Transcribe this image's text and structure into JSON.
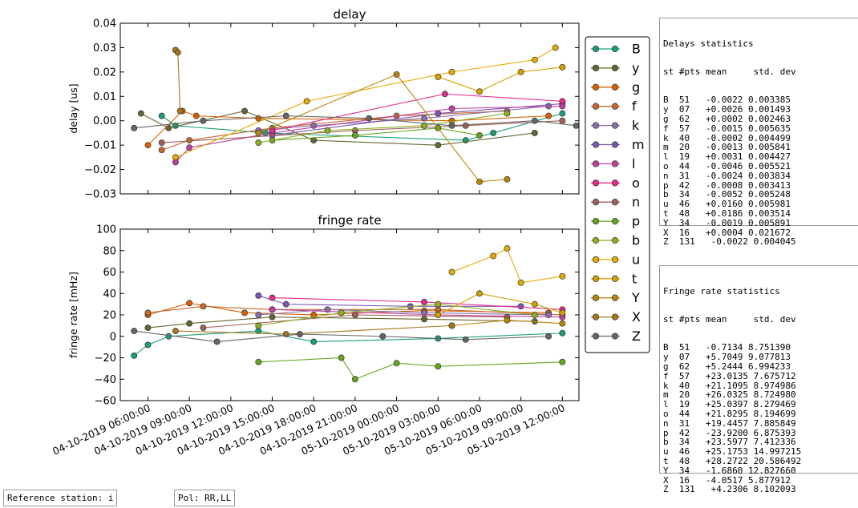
{
  "chart_data": [
    {
      "type": "line",
      "title": "delay",
      "ylabel": "delay [us]",
      "xlabel": "",
      "ylim": [
        -0.03,
        0.04
      ],
      "yticks": [
        "0.04",
        "0.03",
        "0.02",
        "0.01",
        "0.00",
        "−0.01",
        "−0.02",
        "−0.03"
      ],
      "x_categories": [
        "04-10-2019 06:00:00",
        "04-10-2019 09:00:00",
        "04-10-2019 12:00:00",
        "04-10-2019 15:00:00",
        "04-10-2019 18:00:00",
        "04-10-2019 21:00:00",
        "05-10-2019 00:00:00",
        "05-10-2019 03:00:00",
        "05-10-2019 06:00:00",
        "05-10-2019 09:00:00",
        "05-10-2019 12:00:00"
      ],
      "series": [
        {
          "name": "B",
          "color": "#1b9e77",
          "points": [
            [
              "04-10-2019 07:00",
              0.002
            ],
            [
              "04-10-2019 08:00",
              -0.002
            ],
            [
              "04-10-2019 14:30",
              -0.005
            ],
            [
              "05-10-2019 05:00",
              -0.008
            ],
            [
              "05-10-2019 07:00",
              -0.005
            ],
            [
              "05-10-2019 12:00",
              0.003
            ]
          ]
        },
        {
          "name": "y",
          "color": "#666633",
          "points": [
            [
              "04-10-2019 05:30",
              0.003
            ],
            [
              "04-10-2019 07:30",
              -0.003
            ],
            [
              "04-10-2019 13:00",
              0.004
            ],
            [
              "04-10-2019 18:00",
              -0.008
            ],
            [
              "05-10-2019 03:00",
              -0.01
            ],
            [
              "05-10-2019 10:00",
              -0.005
            ]
          ]
        },
        {
          "name": "g",
          "color": "#d95f02",
          "points": [
            [
              "04-10-2019 06:00",
              -0.01
            ],
            [
              "04-10-2019 08:30",
              0.004
            ],
            [
              "04-10-2019 09:30",
              0.002
            ],
            [
              "04-10-2019 14:00",
              0.001
            ],
            [
              "05-10-2019 04:00",
              0.0
            ],
            [
              "05-10-2019 11:00",
              0.002
            ]
          ]
        },
        {
          "name": "f",
          "color": "#c46a2b",
          "points": [
            [
              "04-10-2019 07:00",
              -0.012
            ],
            [
              "04-10-2019 09:00",
              -0.008
            ],
            [
              "04-10-2019 15:00",
              -0.003
            ],
            [
              "05-10-2019 00:00",
              0.002
            ],
            [
              "05-10-2019 08:00",
              0.004
            ]
          ]
        },
        {
          "name": "k",
          "color": "#8870a8",
          "points": [
            [
              "04-10-2019 14:00",
              -0.004
            ],
            [
              "04-10-2019 18:00",
              -0.002
            ],
            [
              "05-10-2019 02:00",
              0.001
            ],
            [
              "05-10-2019 11:00",
              0.006
            ]
          ]
        },
        {
          "name": "m",
          "color": "#7a55b0",
          "points": [
            [
              "04-10-2019 15:00",
              -0.006
            ],
            [
              "05-10-2019 03:00",
              0.003
            ],
            [
              "05-10-2019 12:00",
              0.007
            ]
          ]
        },
        {
          "name": "l",
          "color": "#c040a0",
          "points": [
            [
              "04-10-2019 08:00",
              -0.017
            ],
            [
              "04-10-2019 09:00",
              -0.011
            ],
            [
              "04-10-2019 15:00",
              -0.005
            ],
            [
              "05-10-2019 04:00",
              0.005
            ],
            [
              "05-10-2019 12:00",
              0.006
            ]
          ]
        },
        {
          "name": "o",
          "color": "#e7298a",
          "points": [
            [
              "04-10-2019 15:00",
              -0.004
            ],
            [
              "05-10-2019 03:30",
              0.011
            ],
            [
              "05-10-2019 12:00",
              0.008
            ]
          ]
        },
        {
          "name": "n",
          "color": "#a0605a",
          "points": [
            [
              "04-10-2019 07:00",
              -0.009
            ],
            [
              "04-10-2019 21:00",
              -0.004
            ],
            [
              "05-10-2019 05:00",
              -0.002
            ],
            [
              "05-10-2019 12:00",
              0.0
            ]
          ]
        },
        {
          "name": "p",
          "color": "#66a61e",
          "points": [
            [
              "04-10-2019 15:00",
              -0.008
            ],
            [
              "04-10-2019 21:00",
              -0.006
            ],
            [
              "05-10-2019 03:00",
              -0.003
            ],
            [
              "05-10-2019 06:00",
              -0.006
            ]
          ]
        },
        {
          "name": "b",
          "color": "#8db020",
          "points": [
            [
              "04-10-2019 14:00",
              -0.009
            ],
            [
              "04-10-2019 19:00",
              -0.004
            ],
            [
              "05-10-2019 02:00",
              -0.002
            ],
            [
              "05-10-2019 08:00",
              0.003
            ]
          ]
        },
        {
          "name": "u",
          "color": "#e6ab02",
          "points": [
            [
              "04-10-2019 08:00",
              -0.015
            ],
            [
              "04-10-2019 17:30",
              0.008
            ],
            [
              "05-10-2019 04:00",
              0.02
            ],
            [
              "05-10-2019 10:00",
              0.025
            ],
            [
              "05-10-2019 11:30",
              0.03
            ]
          ]
        },
        {
          "name": "t",
          "color": "#d4a200",
          "points": [
            [
              "05-10-2019 03:00",
              0.018
            ],
            [
              "05-10-2019 06:00",
              0.012
            ],
            [
              "05-10-2019 09:00",
              0.02
            ],
            [
              "05-10-2019 12:00",
              0.022
            ]
          ]
        },
        {
          "name": "Y",
          "color": "#b8860b",
          "points": [
            [
              "04-10-2019 14:00",
              -0.005
            ],
            [
              "05-10-2019 00:00",
              0.019
            ],
            [
              "05-10-2019 06:00",
              -0.025
            ],
            [
              "05-10-2019 08:00",
              -0.024
            ]
          ]
        },
        {
          "name": "X",
          "color": "#a6761d",
          "points": [
            [
              "04-10-2019 08:00",
              0.029
            ],
            [
              "04-10-2019 08:10",
              0.028
            ],
            [
              "04-10-2019 08:20",
              0.004
            ]
          ]
        },
        {
          "name": "Z",
          "color": "#666666",
          "points": [
            [
              "04-10-2019 05:00",
              -0.003
            ],
            [
              "04-10-2019 10:00",
              0.0
            ],
            [
              "04-10-2019 16:00",
              0.002
            ],
            [
              "04-10-2019 22:00",
              0.001
            ],
            [
              "05-10-2019 04:00",
              -0.002
            ],
            [
              "05-10-2019 10:00",
              0.0
            ],
            [
              "05-10-2019 13:00",
              -0.002
            ]
          ]
        }
      ]
    },
    {
      "type": "line",
      "title": "fringe rate",
      "ylabel": "fringe rate [mHz]",
      "xlabel": "",
      "ylim": [
        -60,
        100
      ],
      "yticks": [
        "100",
        "80",
        "60",
        "40",
        "20",
        "0",
        "−20",
        "−40",
        "−60"
      ],
      "x_categories": [
        "04-10-2019 06:00:00",
        "04-10-2019 09:00:00",
        "04-10-2019 12:00:00",
        "04-10-2019 15:00:00",
        "04-10-2019 18:00:00",
        "04-10-2019 21:00:00",
        "05-10-2019 00:00:00",
        "05-10-2019 03:00:00",
        "05-10-2019 06:00:00",
        "05-10-2019 09:00:00",
        "05-10-2019 12:00:00"
      ],
      "series": [
        {
          "name": "B",
          "color": "#1b9e77",
          "points": [
            [
              "04-10-2019 05:00",
              -18
            ],
            [
              "04-10-2019 06:00",
              -8
            ],
            [
              "04-10-2019 07:30",
              0
            ],
            [
              "04-10-2019 14:00",
              5
            ],
            [
              "04-10-2019 18:00",
              -5
            ],
            [
              "05-10-2019 03:00",
              -2
            ],
            [
              "05-10-2019 12:00",
              3
            ]
          ]
        },
        {
          "name": "y",
          "color": "#666633",
          "points": [
            [
              "04-10-2019 06:00",
              8
            ],
            [
              "04-10-2019 09:00",
              12
            ],
            [
              "04-10-2019 15:00",
              18
            ],
            [
              "05-10-2019 02:00",
              16
            ],
            [
              "05-10-2019 10:00",
              14
            ]
          ]
        },
        {
          "name": "g",
          "color": "#d95f02",
          "points": [
            [
              "04-10-2019 06:00",
              20
            ],
            [
              "04-10-2019 09:00",
              31
            ],
            [
              "04-10-2019 13:00",
              22
            ],
            [
              "04-10-2019 18:00",
              20
            ],
            [
              "05-10-2019 02:00",
              24
            ],
            [
              "05-10-2019 11:00",
              22
            ]
          ]
        },
        {
          "name": "f",
          "color": "#c46a2b",
          "points": [
            [
              "04-10-2019 06:00",
              22
            ],
            [
              "04-10-2019 10:00",
              28
            ],
            [
              "04-10-2019 15:00",
              25
            ],
            [
              "05-10-2019 03:00",
              25
            ],
            [
              "05-10-2019 12:00",
              20
            ]
          ]
        },
        {
          "name": "k",
          "color": "#8870a8",
          "points": [
            [
              "04-10-2019 14:00",
              20
            ],
            [
              "04-10-2019 19:00",
              25
            ],
            [
              "05-10-2019 02:00",
              22
            ],
            [
              "05-10-2019 11:00",
              20
            ]
          ]
        },
        {
          "name": "m",
          "color": "#7a55b0",
          "points": [
            [
              "04-10-2019 14:00",
              38
            ],
            [
              "04-10-2019 16:00",
              30
            ],
            [
              "05-10-2019 01:00",
              28
            ],
            [
              "05-10-2019 09:00",
              28
            ]
          ]
        },
        {
          "name": "l",
          "color": "#c040a0",
          "points": [
            [
              "04-10-2019 15:00",
              25
            ],
            [
              "05-10-2019 03:00",
              20
            ],
            [
              "05-10-2019 12:00",
              18
            ]
          ]
        },
        {
          "name": "o",
          "color": "#e7298a",
          "points": [
            [
              "04-10-2019 15:00",
              36
            ],
            [
              "05-10-2019 02:00",
              32
            ],
            [
              "05-10-2019 12:00",
              25
            ]
          ]
        },
        {
          "name": "n",
          "color": "#a0605a",
          "points": [
            [
              "04-10-2019 10:00",
              8
            ],
            [
              "04-10-2019 21:00",
              20
            ],
            [
              "05-10-2019 08:00",
              18
            ]
          ]
        },
        {
          "name": "p",
          "color": "#66a61e",
          "points": [
            [
              "04-10-2019 14:00",
              -24
            ],
            [
              "04-10-2019 20:00",
              -20
            ],
            [
              "04-10-2019 21:00",
              -40
            ],
            [
              "05-10-2019 00:00",
              -25
            ],
            [
              "05-10-2019 03:00",
              -28
            ],
            [
              "05-10-2019 12:00",
              -24
            ]
          ]
        },
        {
          "name": "b",
          "color": "#8db020",
          "points": [
            [
              "04-10-2019 14:00",
              10
            ],
            [
              "04-10-2019 20:00",
              22
            ],
            [
              "05-10-2019 03:00",
              30
            ],
            [
              "05-10-2019 10:00",
              20
            ]
          ]
        },
        {
          "name": "u",
          "color": "#e6ab02",
          "points": [
            [
              "05-10-2019 04:00",
              60
            ],
            [
              "05-10-2019 07:00",
              75
            ],
            [
              "05-10-2019 08:00",
              82
            ],
            [
              "05-10-2019 09:00",
              50
            ],
            [
              "05-10-2019 12:00",
              56
            ]
          ]
        },
        {
          "name": "t",
          "color": "#d4a200",
          "points": [
            [
              "05-10-2019 03:00",
              20
            ],
            [
              "05-10-2019 06:00",
              40
            ],
            [
              "05-10-2019 10:00",
              30
            ],
            [
              "05-10-2019 12:00",
              22
            ]
          ]
        },
        {
          "name": "Y",
          "color": "#b8860b",
          "points": [
            [
              "05-10-2019 04:00",
              10
            ],
            [
              "05-10-2019 08:00",
              15
            ],
            [
              "05-10-2019 12:00",
              12
            ]
          ]
        },
        {
          "name": "X",
          "color": "#a6761d",
          "points": [
            [
              "04-10-2019 08:00",
              5
            ],
            [
              "04-10-2019 16:00",
              2
            ],
            [
              "05-10-2019 04:00",
              10
            ]
          ]
        },
        {
          "name": "Z",
          "color": "#666666",
          "points": [
            [
              "04-10-2019 05:00",
              5
            ],
            [
              "04-10-2019 11:00",
              -5
            ],
            [
              "04-10-2019 17:00",
              2
            ],
            [
              "04-10-2019 23:00",
              0
            ],
            [
              "05-10-2019 05:00",
              -3
            ],
            [
              "05-10-2019 11:00",
              0
            ]
          ]
        }
      ]
    }
  ],
  "legend": [
    "B",
    "y",
    "g",
    "f",
    "k",
    "m",
    "l",
    "o",
    "n",
    "p",
    "b",
    "u",
    "t",
    "Y",
    "X",
    "Z"
  ],
  "delay_stats": {
    "title": "Delays statistics",
    "header": "st #pts mean     std. dev",
    "rows": [
      "B  51   -0.0022 0.003385",
      "y  07   +0.0026 0.001493",
      "g  62   +0.0002 0.002463",
      "f  57   -0.0015 0.005635",
      "k  40   -0.0002 0.004499",
      "m  20   -0.0013 0.005841",
      "l  19   +0.0031 0.004427",
      "o  44   -0.0046 0.005521",
      "n  31   -0.0024 0.003834",
      "p  42   -0.0008 0.003413",
      "b  34   -0.0052 0.005248",
      "u  46   +0.0160 0.005981",
      "t  48   +0.0186 0.003514",
      "Y  34   -0.0019 0.005891",
      "X  16   +0.0004 0.021672",
      "Z  131   -0.0022 0.004045"
    ]
  },
  "rate_stats": {
    "title": "Fringe rate statistics",
    "header": "st #pts mean     std. dev",
    "rows": [
      "B  51   -0.7134 8.751390",
      "y  07   +5.7049 9.077813",
      "g  62   +5.2444 6.994233",
      "f  57   +23.0135 7.675712",
      "k  40   +21.1095 8.974986",
      "m  20   +26.0325 8.724980",
      "l  19   +25.0397 8.279469",
      "o  44   +21.8295 8.194699",
      "n  31   +19.4457 7.885849",
      "p  42   -23.9200 6.875393",
      "b  34   +23.5977 7.412336",
      "u  46   +25.1753 14.997215",
      "t  48   +28.2722 20.586492",
      "Y  34   -1.6860 12.827660",
      "X  16   -4.0517 5.877912",
      "Z  131   +4.2306 8.102093"
    ]
  },
  "footer": {
    "reference": "Reference station: i",
    "pol": "Pol: RR,LL"
  }
}
